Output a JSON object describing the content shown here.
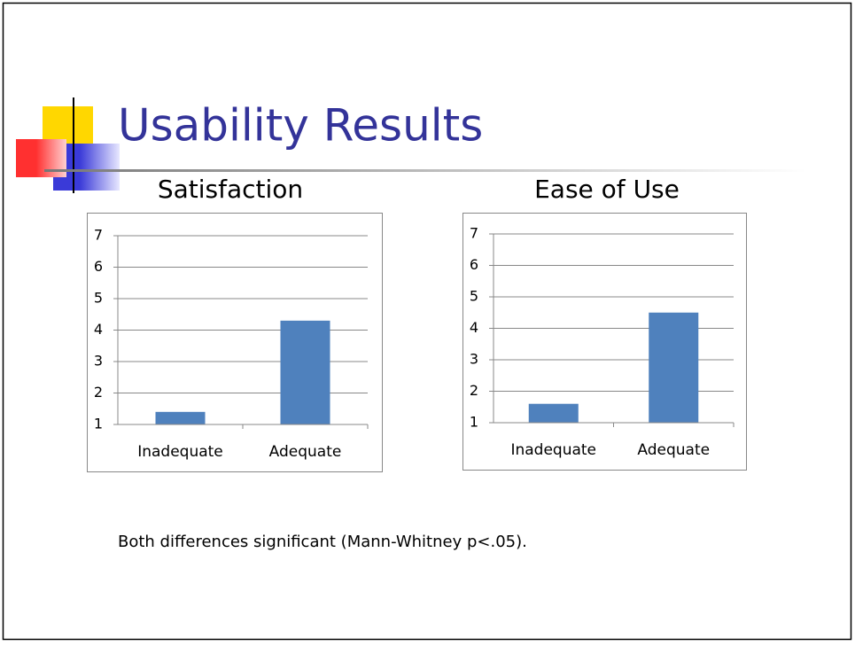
{
  "slide": {
    "title": "Usability Results",
    "note": "Both differences significant (Mann-Whitney p<.05)."
  },
  "chart_data": [
    {
      "type": "bar",
      "title": "Satisfaction",
      "categories": [
        "Inadequate",
        "Adequate"
      ],
      "values": [
        1.4,
        4.3
      ],
      "color": "#4f81bd",
      "ylim": [
        1,
        7
      ],
      "yticks": [
        1,
        2,
        3,
        4,
        5,
        6,
        7
      ],
      "grid": true
    },
    {
      "type": "bar",
      "title": "Ease of Use",
      "categories": [
        "Inadequate",
        "Adequate"
      ],
      "values": [
        1.6,
        4.5
      ],
      "color": "#4f81bd",
      "ylim": [
        1,
        7
      ],
      "yticks": [
        1,
        2,
        3,
        4,
        5,
        6,
        7
      ],
      "grid": true
    }
  ]
}
